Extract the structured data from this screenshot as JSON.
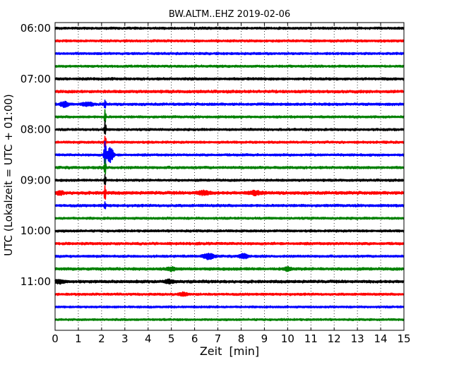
{
  "chart_data": {
    "type": "line",
    "title": "BW.ALTM..EHZ 2019-02-06",
    "xlabel": "Zeit  [min]",
    "ylabel": "UTC (Lokalzeit = UTC + 01:00)",
    "xlim": [
      0,
      15
    ],
    "x_ticks": [
      0,
      1,
      2,
      3,
      4,
      5,
      6,
      7,
      8,
      9,
      10,
      11,
      12,
      13,
      14,
      15
    ],
    "y_tick_labels": [
      "06:00",
      "07:00",
      "08:00",
      "09:00",
      "10:00",
      "11:00"
    ],
    "trace_interval_min": 15,
    "first_trace_utc": "06:00",
    "grid": "vertical dotted at each minute",
    "colors": [
      "#000000",
      "#ff0000",
      "#0000ff",
      "#008000"
    ],
    "series": [
      {
        "start": "06:00",
        "color": "#000000",
        "amplitude": 1.0,
        "events": []
      },
      {
        "start": "06:15",
        "color": "#ff0000",
        "amplitude": 1.0,
        "events": []
      },
      {
        "start": "06:30",
        "color": "#0000ff",
        "amplitude": 1.0,
        "events": []
      },
      {
        "start": "06:45",
        "color": "#008000",
        "amplitude": 1.0,
        "events": []
      },
      {
        "start": "07:00",
        "color": "#000000",
        "amplitude": 1.1,
        "events": []
      },
      {
        "start": "07:15",
        "color": "#ff0000",
        "amplitude": 1.2,
        "events": []
      },
      {
        "start": "07:30",
        "color": "#0000ff",
        "amplitude": 1.1,
        "events": [
          {
            "t": 0.4,
            "amp": 4,
            "dur": 0.3
          },
          {
            "t": 1.4,
            "amp": 3,
            "dur": 0.4
          },
          {
            "t": 2.15,
            "amp": 10,
            "dur": 0.05
          }
        ]
      },
      {
        "start": "07:45",
        "color": "#008000",
        "amplitude": 1.0,
        "events": [
          {
            "t": 2.15,
            "amp": 12,
            "dur": 0.05
          }
        ]
      },
      {
        "start": "08:00",
        "color": "#000000",
        "amplitude": 1.0,
        "events": [
          {
            "t": 2.15,
            "amp": 14,
            "dur": 0.06
          }
        ]
      },
      {
        "start": "08:15",
        "color": "#ff0000",
        "amplitude": 1.0,
        "events": [
          {
            "t": 2.15,
            "amp": 14,
            "dur": 0.06
          }
        ]
      },
      {
        "start": "08:30",
        "color": "#0000ff",
        "amplitude": 1.0,
        "events": [
          {
            "t": 2.15,
            "amp": 28,
            "dur": 0.08
          },
          {
            "t": 2.35,
            "amp": 12,
            "dur": 0.25
          }
        ]
      },
      {
        "start": "08:45",
        "color": "#008000",
        "amplitude": 1.1,
        "events": [
          {
            "t": 2.15,
            "amp": 14,
            "dur": 0.06
          }
        ]
      },
      {
        "start": "09:00",
        "color": "#000000",
        "amplitude": 1.0,
        "events": [
          {
            "t": 2.15,
            "amp": 12,
            "dur": 0.06
          }
        ]
      },
      {
        "start": "09:15",
        "color": "#ff0000",
        "amplitude": 1.3,
        "events": [
          {
            "t": 0.2,
            "amp": 3,
            "dur": 0.3
          },
          {
            "t": 2.15,
            "amp": 12,
            "dur": 0.06
          },
          {
            "t": 6.4,
            "amp": 3,
            "dur": 0.5
          },
          {
            "t": 8.6,
            "amp": 3,
            "dur": 0.5
          }
        ]
      },
      {
        "start": "09:30",
        "color": "#0000ff",
        "amplitude": 1.1,
        "events": [
          {
            "t": 2.15,
            "amp": 8,
            "dur": 0.05
          }
        ]
      },
      {
        "start": "09:45",
        "color": "#008000",
        "amplitude": 1.0,
        "events": []
      },
      {
        "start": "10:00",
        "color": "#000000",
        "amplitude": 1.0,
        "events": []
      },
      {
        "start": "10:15",
        "color": "#ff0000",
        "amplitude": 1.1,
        "events": []
      },
      {
        "start": "10:30",
        "color": "#0000ff",
        "amplitude": 1.0,
        "events": [
          {
            "t": 6.6,
            "amp": 5,
            "dur": 0.4
          },
          {
            "t": 8.1,
            "amp": 4,
            "dur": 0.3
          }
        ]
      },
      {
        "start": "10:45",
        "color": "#008000",
        "amplitude": 1.2,
        "events": [
          {
            "t": 5.0,
            "amp": 3,
            "dur": 0.3
          },
          {
            "t": 10.0,
            "amp": 3,
            "dur": 0.3
          }
        ]
      },
      {
        "start": "11:00",
        "color": "#000000",
        "amplitude": 1.2,
        "events": [
          {
            "t": 0.2,
            "amp": 3,
            "dur": 0.4
          },
          {
            "t": 4.9,
            "amp": 3,
            "dur": 0.3
          }
        ]
      },
      {
        "start": "11:15",
        "color": "#ff0000",
        "amplitude": 1.0,
        "events": [
          {
            "t": 5.5,
            "amp": 3,
            "dur": 0.3
          }
        ]
      },
      {
        "start": "11:30",
        "color": "#0000ff",
        "amplitude": 0.9,
        "events": []
      },
      {
        "start": "11:45",
        "color": "#008000",
        "amplitude": 0.9,
        "events": []
      }
    ]
  }
}
